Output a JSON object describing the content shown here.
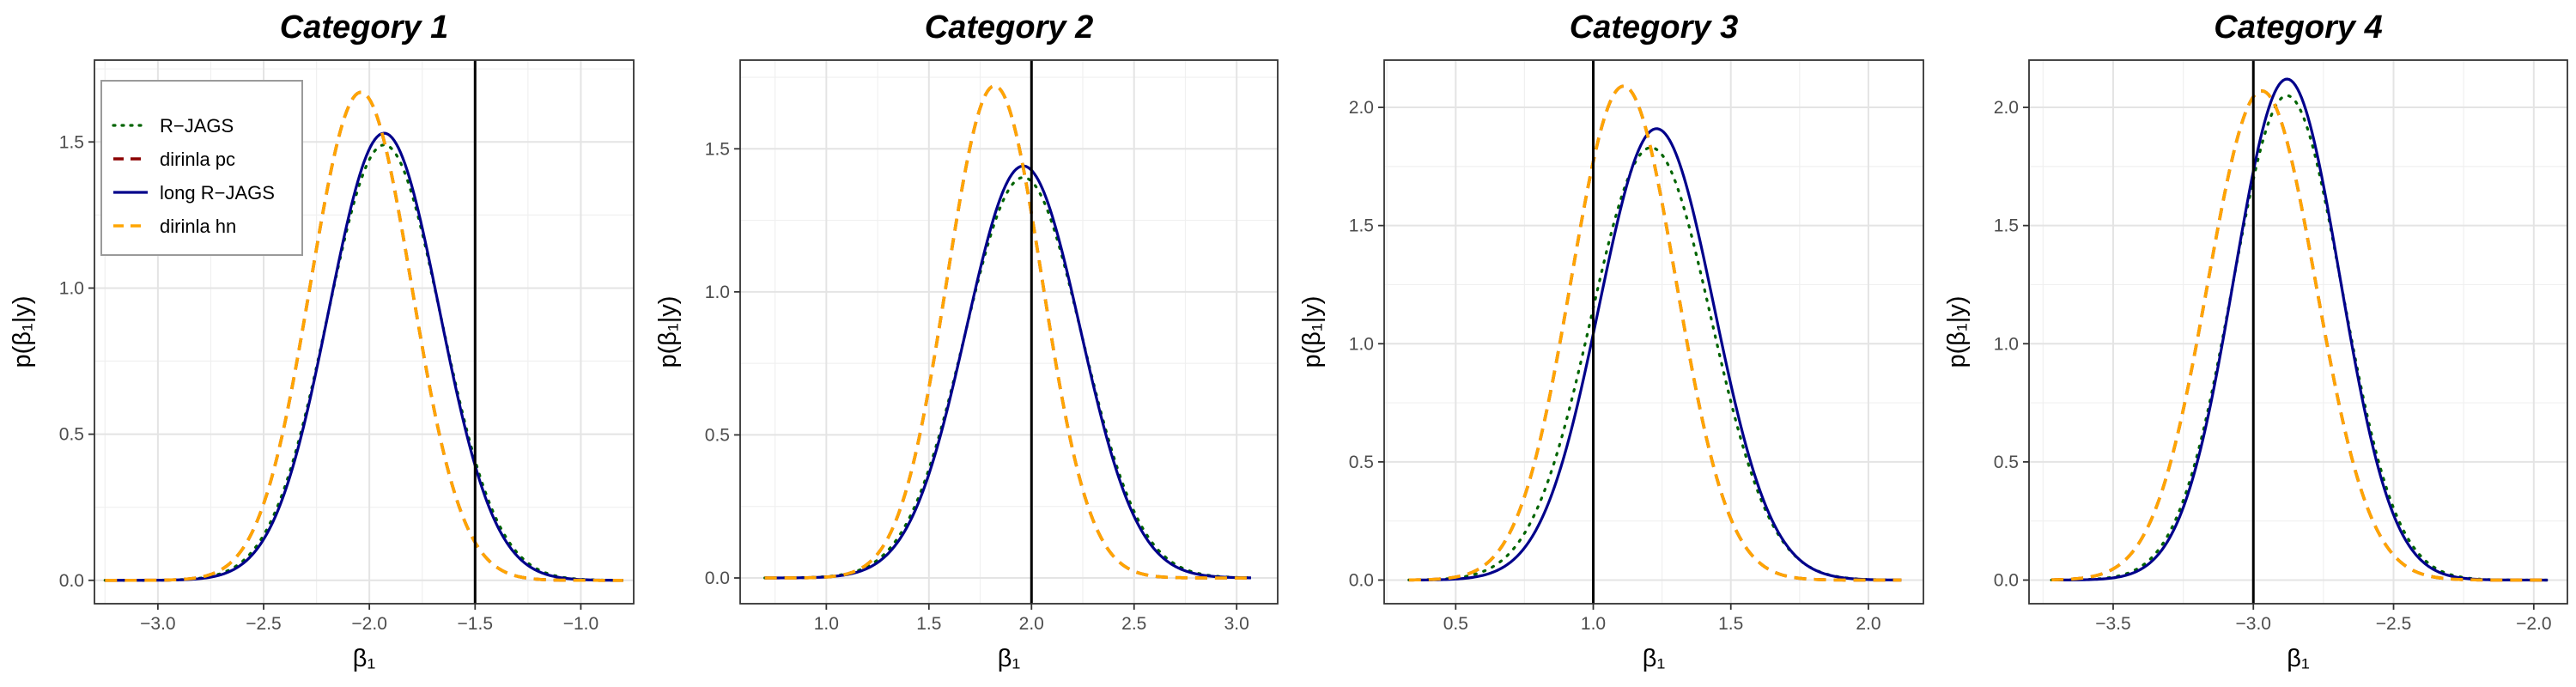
{
  "legend": {
    "position": "top-left (inside Category 1 panel)",
    "entries": [
      {
        "label": "R−JAGS",
        "color": "#006400",
        "style": "dotted"
      },
      {
        "label": "dirinla pc",
        "color": "#8B0000",
        "style": "dashed"
      },
      {
        "label": "long R−JAGS",
        "color": "#00008B",
        "style": "solid"
      },
      {
        "label": "dirinla hn",
        "color": "#FFA500",
        "style": "dashed"
      }
    ]
  },
  "chart_data": [
    {
      "type": "line",
      "title": "Category 1",
      "xlabel": "β₁",
      "ylabel": "p(β₁|y)",
      "xlim": [
        -3.3,
        -0.75
      ],
      "ylim": [
        -0.08,
        1.78
      ],
      "xticks": [
        {
          "value": -3.0,
          "label": "−3.0"
        },
        {
          "value": -2.5,
          "label": "−2.5"
        },
        {
          "value": -2.0,
          "label": "−2.0"
        },
        {
          "value": -1.5,
          "label": "−1.5"
        },
        {
          "value": -1.0,
          "label": "−1.0"
        }
      ],
      "yticks": [
        {
          "value": 0,
          "label": "0.0"
        },
        {
          "value": 0.5,
          "label": "0.5"
        },
        {
          "value": 1.0,
          "label": "1.0"
        },
        {
          "value": 1.5,
          "label": "1.5"
        }
      ],
      "vline": -1.5,
      "x_range": [
        -3.25,
        -0.8
      ],
      "grid": true,
      "series": [
        {
          "name": "R−JAGS",
          "mean": -1.93,
          "peak": 1.49
        },
        {
          "name": "dirinla pc",
          "mean": -2.04,
          "peak": 1.67
        },
        {
          "name": "long R−JAGS",
          "mean": -1.93,
          "peak": 1.53
        },
        {
          "name": "dirinla hn",
          "mean": -2.04,
          "peak": 1.67
        }
      ]
    },
    {
      "type": "line",
      "title": "Category 2",
      "xlabel": "β₁",
      "ylabel": "p(β₁|y)",
      "xlim": [
        0.58,
        3.2
      ],
      "ylim": [
        -0.09,
        1.81
      ],
      "xticks": [
        {
          "value": 1.0,
          "label": "1.0"
        },
        {
          "value": 1.5,
          "label": "1.5"
        },
        {
          "value": 2.0,
          "label": "2.0"
        },
        {
          "value": 2.5,
          "label": "2.5"
        },
        {
          "value": 3.0,
          "label": "3.0"
        }
      ],
      "yticks": [
        {
          "value": 0,
          "label": "0.0"
        },
        {
          "value": 0.5,
          "label": "0.5"
        },
        {
          "value": 1.0,
          "label": "1.0"
        },
        {
          "value": 1.5,
          "label": "1.5"
        }
      ],
      "vline": 2.0,
      "x_range": [
        0.7,
        3.07
      ],
      "grid": true,
      "series": [
        {
          "name": "R−JAGS",
          "mean": 1.96,
          "peak": 1.4
        },
        {
          "name": "dirinla pc",
          "mean": 1.82,
          "peak": 1.72
        },
        {
          "name": "long R−JAGS",
          "mean": 1.96,
          "peak": 1.44
        },
        {
          "name": "dirinla hn",
          "mean": 1.82,
          "peak": 1.72
        }
      ]
    },
    {
      "type": "line",
      "title": "Category 3",
      "xlabel": "β₁",
      "ylabel": "p(β₁|y)",
      "xlim": [
        0.24,
        2.2
      ],
      "ylim": [
        -0.1,
        2.2
      ],
      "xticks": [
        {
          "value": 0.5,
          "label": "0.5"
        },
        {
          "value": 1.0,
          "label": "1.0"
        },
        {
          "value": 1.5,
          "label": "1.5"
        },
        {
          "value": 2.0,
          "label": "2.0"
        }
      ],
      "yticks": [
        {
          "value": 0,
          "label": "0.0"
        },
        {
          "value": 0.5,
          "label": "0.5"
        },
        {
          "value": 1.0,
          "label": "1.0"
        },
        {
          "value": 1.5,
          "label": "1.5"
        },
        {
          "value": 2.0,
          "label": "2.0"
        }
      ],
      "vline": 1.0,
      "x_range": [
        0.33,
        2.12
      ],
      "grid": true,
      "series": [
        {
          "name": "R−JAGS",
          "mean": 1.21,
          "peak": 1.83
        },
        {
          "name": "dirinla pc",
          "mean": 1.11,
          "peak": 2.09
        },
        {
          "name": "long R−JAGS",
          "mean": 1.23,
          "peak": 1.91
        },
        {
          "name": "dirinla hn",
          "mean": 1.11,
          "peak": 2.09
        }
      ]
    },
    {
      "type": "line",
      "title": "Category 4",
      "xlabel": "β₁",
      "ylabel": "p(β₁|y)",
      "xlim": [
        -3.8,
        -1.88
      ],
      "ylim": [
        -0.1,
        2.2
      ],
      "xticks": [
        {
          "value": -3.5,
          "label": "−3.5"
        },
        {
          "value": -3.0,
          "label": "−3.0"
        },
        {
          "value": -2.5,
          "label": "−2.5"
        },
        {
          "value": -2.0,
          "label": "−2.0"
        }
      ],
      "yticks": [
        {
          "value": 0,
          "label": "0.0"
        },
        {
          "value": 0.5,
          "label": "0.5"
        },
        {
          "value": 1.0,
          "label": "1.0"
        },
        {
          "value": 1.5,
          "label": "1.5"
        },
        {
          "value": 2.0,
          "label": "2.0"
        }
      ],
      "vline": -3.0,
      "x_range": [
        -3.72,
        -1.95
      ],
      "grid": true,
      "series": [
        {
          "name": "R−JAGS",
          "mean": -2.88,
          "peak": 2.05
        },
        {
          "name": "dirinla pc",
          "mean": -2.97,
          "peak": 2.07
        },
        {
          "name": "long R−JAGS",
          "mean": -2.88,
          "peak": 2.12
        },
        {
          "name": "dirinla hn",
          "mean": -2.97,
          "peak": 2.07
        }
      ]
    }
  ]
}
